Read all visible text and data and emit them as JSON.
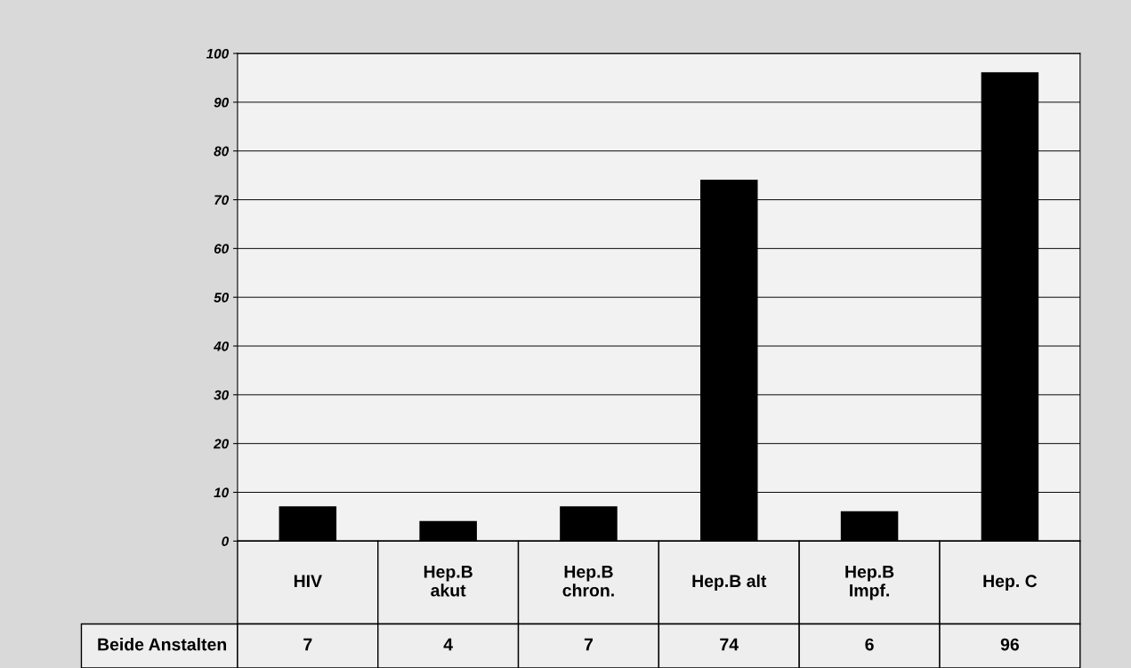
{
  "chart_data": {
    "type": "bar",
    "categories": [
      "HIV",
      "Hep.B\nakut",
      "Hep.B\nchron.",
      "Hep.B alt",
      "Hep.B\nImpf.",
      "Hep. C"
    ],
    "series": [
      {
        "name": "Beide Anstalten",
        "color": "#000000",
        "values": [
          7,
          4,
          7,
          74,
          6,
          96
        ]
      }
    ],
    "ylim": [
      0,
      100
    ],
    "yticks": [
      0,
      10,
      20,
      30,
      40,
      50,
      60,
      70,
      80,
      90,
      100
    ],
    "grid": "y",
    "data_labels": true,
    "legend": false
  }
}
